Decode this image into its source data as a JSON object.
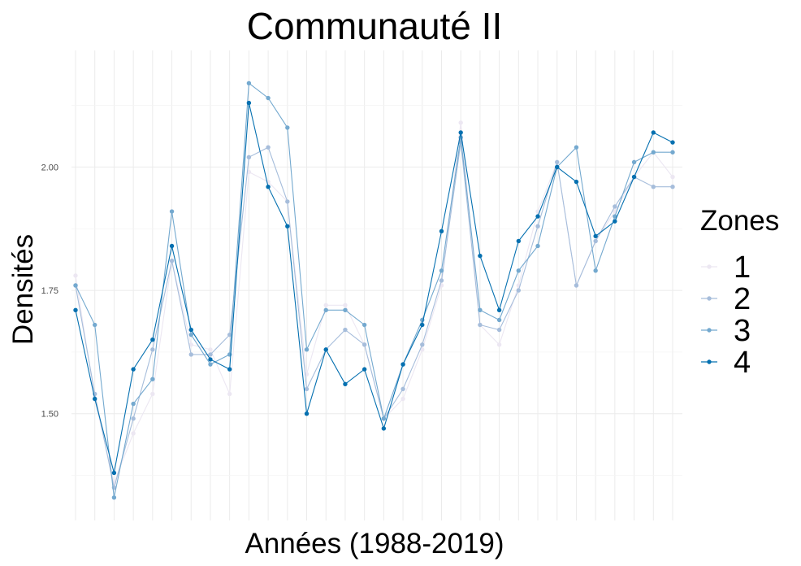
{
  "chart_data": {
    "type": "line",
    "title": "Communauté II",
    "xlabel": "Années (1988-2019)",
    "ylabel": "Densités",
    "x": [
      1988,
      1989,
      1990,
      1991,
      1992,
      1993,
      1994,
      1995,
      1996,
      1997,
      1998,
      1999,
      2000,
      2001,
      2002,
      2003,
      2004,
      2005,
      2006,
      2007,
      2008,
      2009,
      2010,
      2011,
      2012,
      2013,
      2014,
      2015,
      2016,
      2017,
      2018,
      2019
    ],
    "xlim": [
      1988,
      2019
    ],
    "ylim": [
      1.3,
      2.22
    ],
    "yticks": [
      1.5,
      1.75,
      2.0
    ],
    "ytick_labels": [
      "1.50",
      "1.75",
      "2.00"
    ],
    "grid": true,
    "legend": {
      "title": "Zones",
      "position": "right",
      "entries": [
        "1",
        "2",
        "3",
        "4"
      ]
    },
    "series": [
      {
        "name": "1",
        "color": "#ece7f2",
        "values": [
          1.78,
          1.53,
          1.36,
          1.46,
          1.54,
          1.81,
          1.64,
          1.63,
          1.54,
          1.99,
          1.97,
          1.93,
          1.58,
          1.72,
          1.72,
          1.64,
          1.49,
          1.53,
          1.63,
          1.76,
          2.09,
          1.68,
          1.64,
          1.76,
          1.91,
          2.01,
          1.76,
          1.85,
          1.91,
          1.98,
          2.03,
          1.98
        ]
      },
      {
        "name": "2",
        "color": "#a6bddb",
        "values": [
          1.76,
          1.54,
          1.35,
          1.49,
          1.63,
          1.81,
          1.62,
          1.62,
          1.66,
          2.02,
          2.04,
          1.93,
          1.55,
          1.63,
          1.67,
          1.64,
          1.49,
          1.55,
          1.64,
          1.77,
          2.05,
          1.68,
          1.67,
          1.75,
          1.88,
          2.01,
          1.76,
          1.85,
          1.92,
          1.98,
          1.96,
          1.96
        ]
      },
      {
        "name": "3",
        "color": "#74a9cf",
        "values": [
          1.76,
          1.68,
          1.33,
          1.52,
          1.57,
          1.91,
          1.66,
          1.6,
          1.62,
          2.17,
          2.14,
          2.08,
          1.63,
          1.71,
          1.71,
          1.68,
          1.49,
          1.6,
          1.69,
          1.79,
          2.06,
          1.71,
          1.69,
          1.79,
          1.84,
          2.0,
          2.04,
          1.79,
          1.9,
          2.01,
          2.03,
          2.03
        ]
      },
      {
        "name": "4",
        "color": "#0570b0",
        "values": [
          1.71,
          1.53,
          1.38,
          1.59,
          1.65,
          1.84,
          1.67,
          1.61,
          1.59,
          2.13,
          1.96,
          1.88,
          1.5,
          1.63,
          1.56,
          1.59,
          1.47,
          1.6,
          1.68,
          1.87,
          2.07,
          1.82,
          1.71,
          1.85,
          1.9,
          2.0,
          1.97,
          1.86,
          1.89,
          1.98,
          2.07,
          2.05
        ]
      }
    ]
  }
}
